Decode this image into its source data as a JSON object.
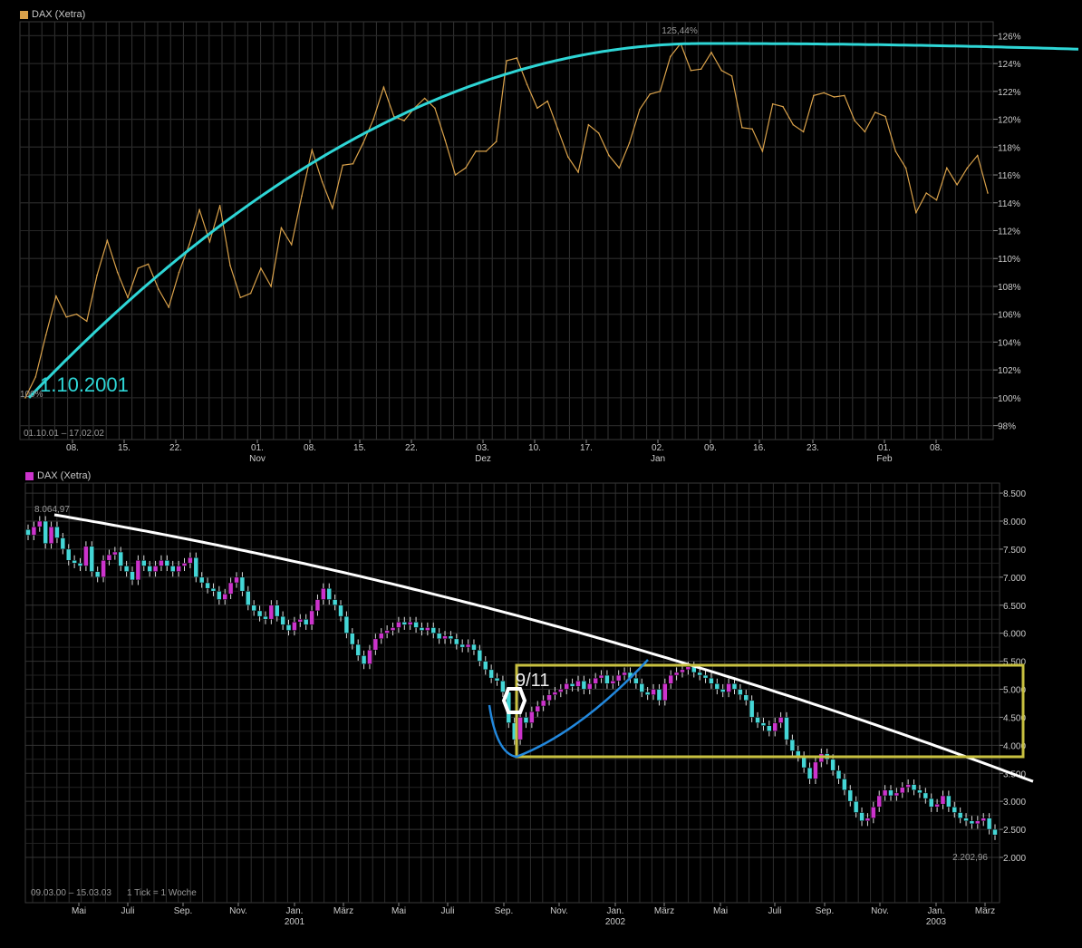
{
  "top": {
    "legend_label": "DAX (Xetra)",
    "legend_color": "#d9a14a",
    "line_color": "#d9a14a",
    "trend_color": "#2ed6d6",
    "grid_color": "#333333",
    "y_ticks": [
      "126%",
      "124%",
      "122%",
      "120%",
      "118%",
      "116%",
      "114%",
      "112%",
      "110%",
      "108%",
      "106%",
      "104%",
      "102%",
      "100%",
      "98%"
    ],
    "x_ticks": [
      "08.",
      "15.",
      "22.",
      "01.",
      "08.",
      "15.",
      "22.",
      "03.",
      "10.",
      "17.",
      "02.",
      "09.",
      "16.",
      "23.",
      "01.",
      "08."
    ],
    "x_month_labels": [
      "Nov",
      "Dez",
      "Jan",
      "Feb"
    ],
    "range_label": "01.10.01 – 17.02.02",
    "start_label": "100%",
    "peak_label": "125,44%",
    "annotation_date": "1.10.2001"
  },
  "bottom": {
    "legend_label": "DAX (Xetra)",
    "legend_color": "#cc33cc",
    "up_color": "#cc33cc",
    "down_color": "#44d6d6",
    "trend_color": "#ffffff",
    "curve_color": "#2288dd",
    "box_color": "#c8c040",
    "y_ticks": [
      "8.500",
      "8.000",
      "7.500",
      "7.000",
      "6.500",
      "6.000",
      "5.500",
      "5.000",
      "4.500",
      "4.000",
      "3.500",
      "3.000",
      "2.500",
      "2.000"
    ],
    "x_ticks": [
      "Mai",
      "Juli",
      "Sep.",
      "Nov.",
      "Jan.",
      "März",
      "Mai",
      "Juli",
      "Sep.",
      "Nov.",
      "Jan.",
      "März",
      "Mai",
      "Juli",
      "Sep.",
      "Nov.",
      "Jan.",
      "März"
    ],
    "x_year_labels": [
      "2001",
      "2002",
      "2003"
    ],
    "range_label": "09.03.00 – 15.03.03",
    "tick_label": "1 Tick = 1 Woche",
    "max_label": "8.064,97",
    "min_label": "2.202,96",
    "annotation_911": "9/11"
  },
  "chart_data": [
    {
      "type": "line",
      "title": "DAX (Xetra)",
      "unit": "%",
      "ylim": [
        97,
        127
      ],
      "grid": true,
      "legend_position": "top-left",
      "x_range": [
        "01.10.01",
        "17.02.02"
      ],
      "series": [
        {
          "name": "DAX (Xetra)",
          "values": [
            100,
            101.5,
            104.5,
            107.3,
            105.8,
            106,
            105.5,
            108.8,
            111.3,
            109,
            107.2,
            109.3,
            109.6,
            107.8,
            106.5,
            109,
            111,
            113.5,
            111.2,
            113.8,
            109.5,
            107.2,
            107.5,
            109.3,
            108,
            112.2,
            111,
            114.5,
            117.8,
            115.5,
            113.6,
            116.7,
            116.8,
            118.3,
            120,
            122.3,
            120.2,
            119.9,
            120.8,
            121.5,
            120.8,
            118.5,
            116,
            116.5,
            117.7,
            117.7,
            118.4,
            124.2,
            124.4,
            122.5,
            120.8,
            121.3,
            119.3,
            117.3,
            116.2,
            119.6,
            119,
            117.4,
            116.5,
            118.3,
            120.7,
            121.8,
            122,
            124.5,
            125.44,
            123.5,
            123.6,
            124.8,
            123.5,
            123.1,
            119.4,
            119.3,
            117.7,
            121.1,
            120.9,
            119.6,
            119.1,
            121.7,
            121.9,
            121.6,
            121.7,
            119.9,
            119.1,
            120.5,
            120.2,
            117.7,
            116.5,
            113.3,
            114.7,
            114.2,
            116.5,
            115.3,
            116.5,
            117.4,
            114.7
          ]
        }
      ],
      "trend": {
        "start": 100,
        "peak": 125.44,
        "peak_index": 66,
        "end": 124.0,
        "label": "1.10.2001"
      }
    },
    {
      "type": "candlestick",
      "title": "DAX (Xetra)",
      "ylim": [
        1700,
        8550
      ],
      "grid": true,
      "legend_position": "top-left",
      "x_range": [
        "09.03.00",
        "15.03.03"
      ],
      "interval": "1 Woche",
      "series": [
        {
          "name": "DAX (Xetra)",
          "close": [
            7750,
            7900,
            8000,
            7600,
            7900,
            7700,
            7500,
            7300,
            7250,
            7200,
            7550,
            7100,
            7000,
            7300,
            7400,
            7450,
            7200,
            7100,
            6950,
            7300,
            7200,
            7100,
            7200,
            7300,
            7200,
            7100,
            7200,
            7250,
            7350,
            7000,
            6900,
            6800,
            6750,
            6600,
            6700,
            6900,
            7000,
            6750,
            6500,
            6400,
            6300,
            6250,
            6500,
            6300,
            6150,
            6050,
            6200,
            6250,
            6150,
            6400,
            6600,
            6800,
            6600,
            6500,
            6300,
            6000,
            5800,
            5600,
            5450,
            5700,
            5900,
            6000,
            6050,
            6100,
            6200,
            6150,
            6200,
            6100,
            6050,
            6100,
            6000,
            5900,
            5950,
            5900,
            5800,
            5750,
            5800,
            5700,
            5500,
            5350,
            5200,
            5150,
            4950,
            4400,
            4100,
            4500,
            4400,
            4600,
            4700,
            4800,
            4900,
            4950,
            5000,
            5100,
            5050,
            5150,
            5000,
            5100,
            5200,
            5250,
            5100,
            5150,
            5250,
            5300,
            5200,
            5100,
            4950,
            4900,
            5000,
            4800,
            5100,
            5250,
            5300,
            5350,
            5400,
            5300,
            5250,
            5200,
            5100,
            5000,
            4950,
            5100,
            5000,
            4900,
            4800,
            4500,
            4400,
            4350,
            4250,
            4400,
            4500,
            4100,
            3900,
            3800,
            3600,
            3400,
            3700,
            3850,
            3750,
            3550,
            3400,
            3200,
            3000,
            2800,
            2650,
            2700,
            2900,
            3100,
            3200,
            3100,
            3150,
            3250,
            3300,
            3200,
            3150,
            3050,
            2900,
            2950,
            3100,
            2900,
            2800,
            2700,
            2650,
            2600,
            2650,
            2700,
            2500,
            2400
          ]
        }
      ],
      "max": 8064.97,
      "min": 2202.96,
      "annotations": [
        "9/11"
      ]
    }
  ]
}
